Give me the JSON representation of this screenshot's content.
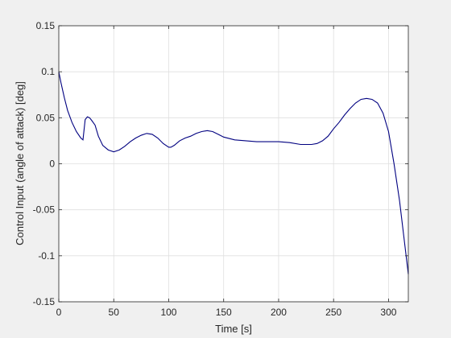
{
  "chart_data": {
    "type": "line",
    "title": "",
    "xlabel": "Time [s]",
    "ylabel": "Control Input (angle of attack) [deg]",
    "xlim": [
      0,
      318
    ],
    "ylim": [
      -0.15,
      0.15
    ],
    "xticks": [
      0,
      50,
      100,
      150,
      200,
      250,
      300
    ],
    "yticks": [
      -0.15,
      -0.1,
      -0.05,
      0,
      0.05,
      0.1,
      0.15
    ],
    "xtick_labels": [
      "0",
      "50",
      "100",
      "150",
      "200",
      "250",
      "300"
    ],
    "ytick_labels": [
      "-0.15",
      "-0.1",
      "-0.05",
      "0",
      "0.05",
      "0.1",
      "0.15"
    ],
    "grid": true,
    "series": [
      {
        "color": "#000080",
        "x": [
          0,
          2,
          5,
          8,
          12,
          16,
          20,
          22,
          24,
          26,
          28,
          30,
          33,
          36,
          40,
          45,
          50,
          55,
          60,
          65,
          70,
          75,
          80,
          85,
          90,
          95,
          100,
          102,
          105,
          110,
          115,
          120,
          125,
          130,
          135,
          140,
          145,
          150,
          160,
          170,
          180,
          190,
          200,
          210,
          220,
          230,
          235,
          240,
          245,
          250,
          255,
          260,
          265,
          270,
          275,
          280,
          285,
          290,
          295,
          300,
          305,
          310,
          315,
          318
        ],
        "y": [
          0.1,
          0.088,
          0.072,
          0.058,
          0.045,
          0.035,
          0.028,
          0.026,
          0.048,
          0.051,
          0.05,
          0.047,
          0.042,
          0.03,
          0.02,
          0.015,
          0.013,
          0.015,
          0.019,
          0.024,
          0.028,
          0.031,
          0.033,
          0.032,
          0.028,
          0.022,
          0.018,
          0.018,
          0.02,
          0.025,
          0.028,
          0.03,
          0.033,
          0.035,
          0.036,
          0.035,
          0.032,
          0.029,
          0.026,
          0.025,
          0.024,
          0.024,
          0.024,
          0.023,
          0.021,
          0.021,
          0.022,
          0.025,
          0.03,
          0.038,
          0.045,
          0.053,
          0.06,
          0.066,
          0.07,
          0.071,
          0.07,
          0.066,
          0.055,
          0.035,
          0.0,
          -0.04,
          -0.09,
          -0.12
        ]
      }
    ]
  }
}
